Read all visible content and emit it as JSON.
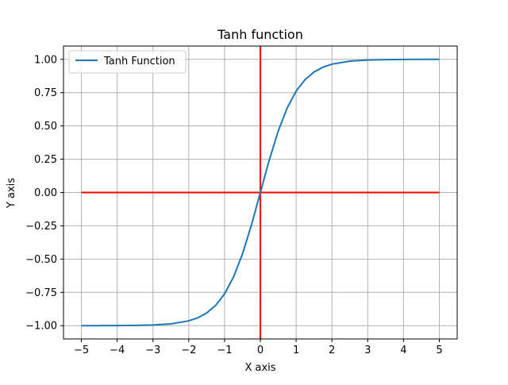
{
  "chart_data": {
    "type": "line",
    "title": "Tanh function",
    "xlabel": "X axis",
    "ylabel": "Y axis",
    "xlim": [
      -5.5,
      5.5
    ],
    "ylim": [
      -1.1,
      1.1
    ],
    "x_ticks": [
      -5,
      -4,
      -3,
      -2,
      -1,
      0,
      1,
      2,
      3,
      4,
      5
    ],
    "x_tick_labels": [
      "−5",
      "−4",
      "−3",
      "−2",
      "−1",
      "0",
      "1",
      "2",
      "3",
      "4",
      "5"
    ],
    "y_ticks": [
      -1.0,
      -0.75,
      -0.5,
      -0.25,
      0.0,
      0.25,
      0.5,
      0.75,
      1.0
    ],
    "y_tick_labels": [
      "−1.00",
      "−0.75",
      "−0.50",
      "−0.25",
      "0.00",
      "0.25",
      "0.50",
      "0.75",
      "1.00"
    ],
    "grid": true,
    "legend_position": "top-left",
    "series": [
      {
        "name": "Tanh Function",
        "color": "#1f77b4",
        "x": [
          -5,
          -4.5,
          -4,
          -3.5,
          -3,
          -2.5,
          -2,
          -1.75,
          -1.5,
          -1.25,
          -1,
          -0.75,
          -0.5,
          -0.25,
          0,
          0.25,
          0.5,
          0.75,
          1,
          1.25,
          1.5,
          1.75,
          2,
          2.5,
          3,
          3.5,
          4,
          4.5,
          5
        ],
        "y": [
          -0.9999,
          -0.9998,
          -0.9993,
          -0.9982,
          -0.9951,
          -0.9866,
          -0.964,
          -0.9414,
          -0.9051,
          -0.8483,
          -0.7616,
          -0.6351,
          -0.4621,
          -0.2449,
          0,
          0.2449,
          0.4621,
          0.6351,
          0.7616,
          0.8483,
          0.9051,
          0.9414,
          0.964,
          0.9866,
          0.9951,
          0.9982,
          0.9993,
          0.9998,
          0.9999
        ]
      }
    ],
    "reference_lines": [
      {
        "orientation": "horizontal",
        "value": 0,
        "from": -5,
        "to": 5,
        "color": "#ff0000"
      },
      {
        "orientation": "vertical",
        "value": 0,
        "color": "#ff0000"
      }
    ],
    "colors": {
      "grid": "#b0b0b0",
      "axes": "#000000",
      "legend_border": "#cccccc"
    }
  }
}
